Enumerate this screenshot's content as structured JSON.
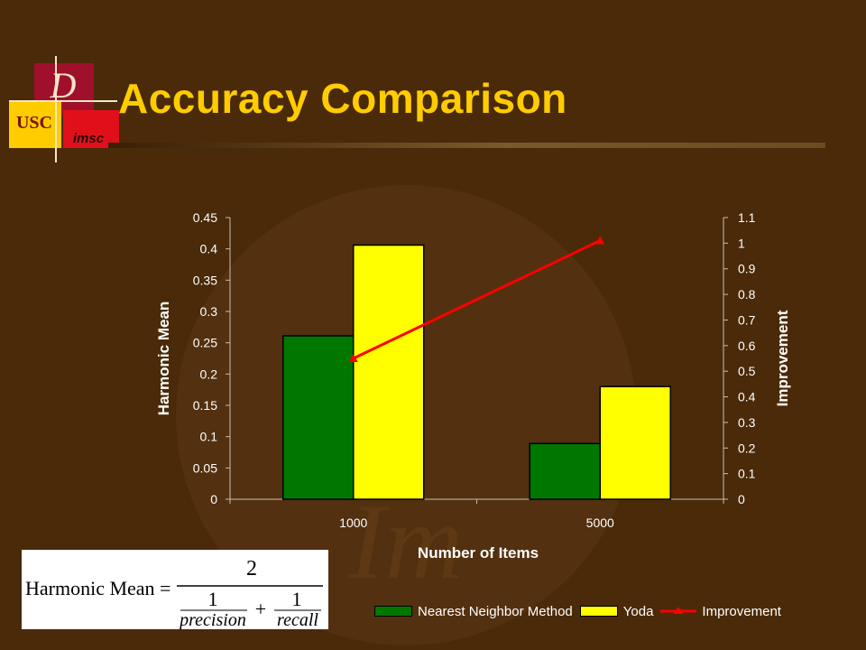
{
  "slide": {
    "title": "Accuracy Comparison",
    "logo_text": {
      "usc": "USC",
      "imsc": "imsc",
      "monogram": "D",
      "watermark": "Im"
    },
    "colors": {
      "background": "#4a2a09",
      "title": "#ffcc00",
      "green": "#007700",
      "yellow": "#ffff00",
      "line": "#ff0000"
    }
  },
  "formula": {
    "lhs": "Harmonic Mean =",
    "numerator": "2",
    "term1_num": "1",
    "term1_den": "precision",
    "plus": "+",
    "term2_num": "1",
    "term2_den": "recall"
  },
  "chart_data": {
    "type": "bar",
    "categories": [
      "1000",
      "5000"
    ],
    "xlabel": "Number of Items",
    "ylabel": "Harmonic Mean",
    "y2label": "Improvement",
    "ylim": [
      0,
      0.45
    ],
    "y2lim": [
      0,
      1.1
    ],
    "yticks": [
      "0",
      "0.05",
      "0.1",
      "0.15",
      "0.2",
      "0.25",
      "0.3",
      "0.35",
      "0.4",
      "0.45"
    ],
    "y2ticks": [
      "0",
      "0.1",
      "0.2",
      "0.3",
      "0.4",
      "0.5",
      "0.6",
      "0.7",
      "0.8",
      "0.9",
      "1",
      "1.1"
    ],
    "series": [
      {
        "name": "Nearest Neighbor Method",
        "type": "bar",
        "axis": "left",
        "color": "#007700",
        "values": [
          0.261,
          0.089
        ]
      },
      {
        "name": "Yoda",
        "type": "bar",
        "axis": "left",
        "color": "#ffff00",
        "values": [
          0.406,
          0.18
        ]
      },
      {
        "name": "Improvement",
        "type": "line",
        "axis": "right",
        "color": "#ff0000",
        "values": [
          0.55,
          1.01
        ]
      }
    ],
    "legend_position": "bottom",
    "grid": false
  }
}
